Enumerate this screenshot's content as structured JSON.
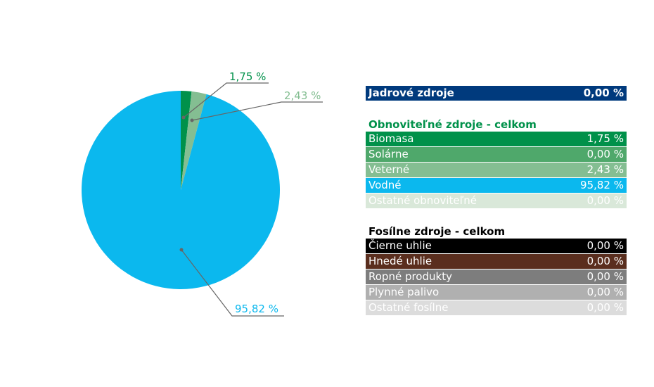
{
  "chart_data": {
    "type": "pie",
    "slices": [
      {
        "label": "Biomasa",
        "value": 1.75,
        "display": "1,75 %",
        "color": "#00914a"
      },
      {
        "label": "Veterné",
        "value": 2.43,
        "display": "2,43 %",
        "color": "#84be92"
      },
      {
        "label": "Vodné",
        "value": 95.82,
        "display": "95,82 %",
        "color": "#0bb8ee"
      }
    ]
  },
  "legend": {
    "nuclear": {
      "label": "Jadrové zdroje",
      "value": "0,00 %",
      "color": "#003a7d"
    },
    "renewable": {
      "title": "Obnoviteľné zdroje - celkom",
      "title_color": "#00914a",
      "items": [
        {
          "label": "Biomasa",
          "value": "1,75 %",
          "color": "#00914a"
        },
        {
          "label": "Solárne",
          "value": "0,00 %",
          "color": "#4fa86b"
        },
        {
          "label": "Veterné",
          "value": "2,43 %",
          "color": "#84be92"
        },
        {
          "label": "Vodné",
          "value": "95,82 %",
          "color": "#0bb8ee"
        },
        {
          "label": "Ostatné obnoviteľné",
          "value": "0,00 %",
          "color": "#d9e8d9"
        }
      ]
    },
    "fossil": {
      "title": "Fosílne zdroje - celkom",
      "title_color": "#000000",
      "items": [
        {
          "label": "Čierne uhlie",
          "value": "0,00 %",
          "color": "#000000"
        },
        {
          "label": "Hnedé uhlie",
          "value": "0,00 %",
          "color": "#5a2e1e"
        },
        {
          "label": "Ropné produkty",
          "value": "0,00 %",
          "color": "#7d7d7d"
        },
        {
          "label": "Plynné palivo",
          "value": "0,00 %",
          "color": "#b0b0b0"
        },
        {
          "label": "Ostatné fosílne",
          "value": "0,00 %",
          "color": "#dcdcdc"
        }
      ]
    }
  }
}
